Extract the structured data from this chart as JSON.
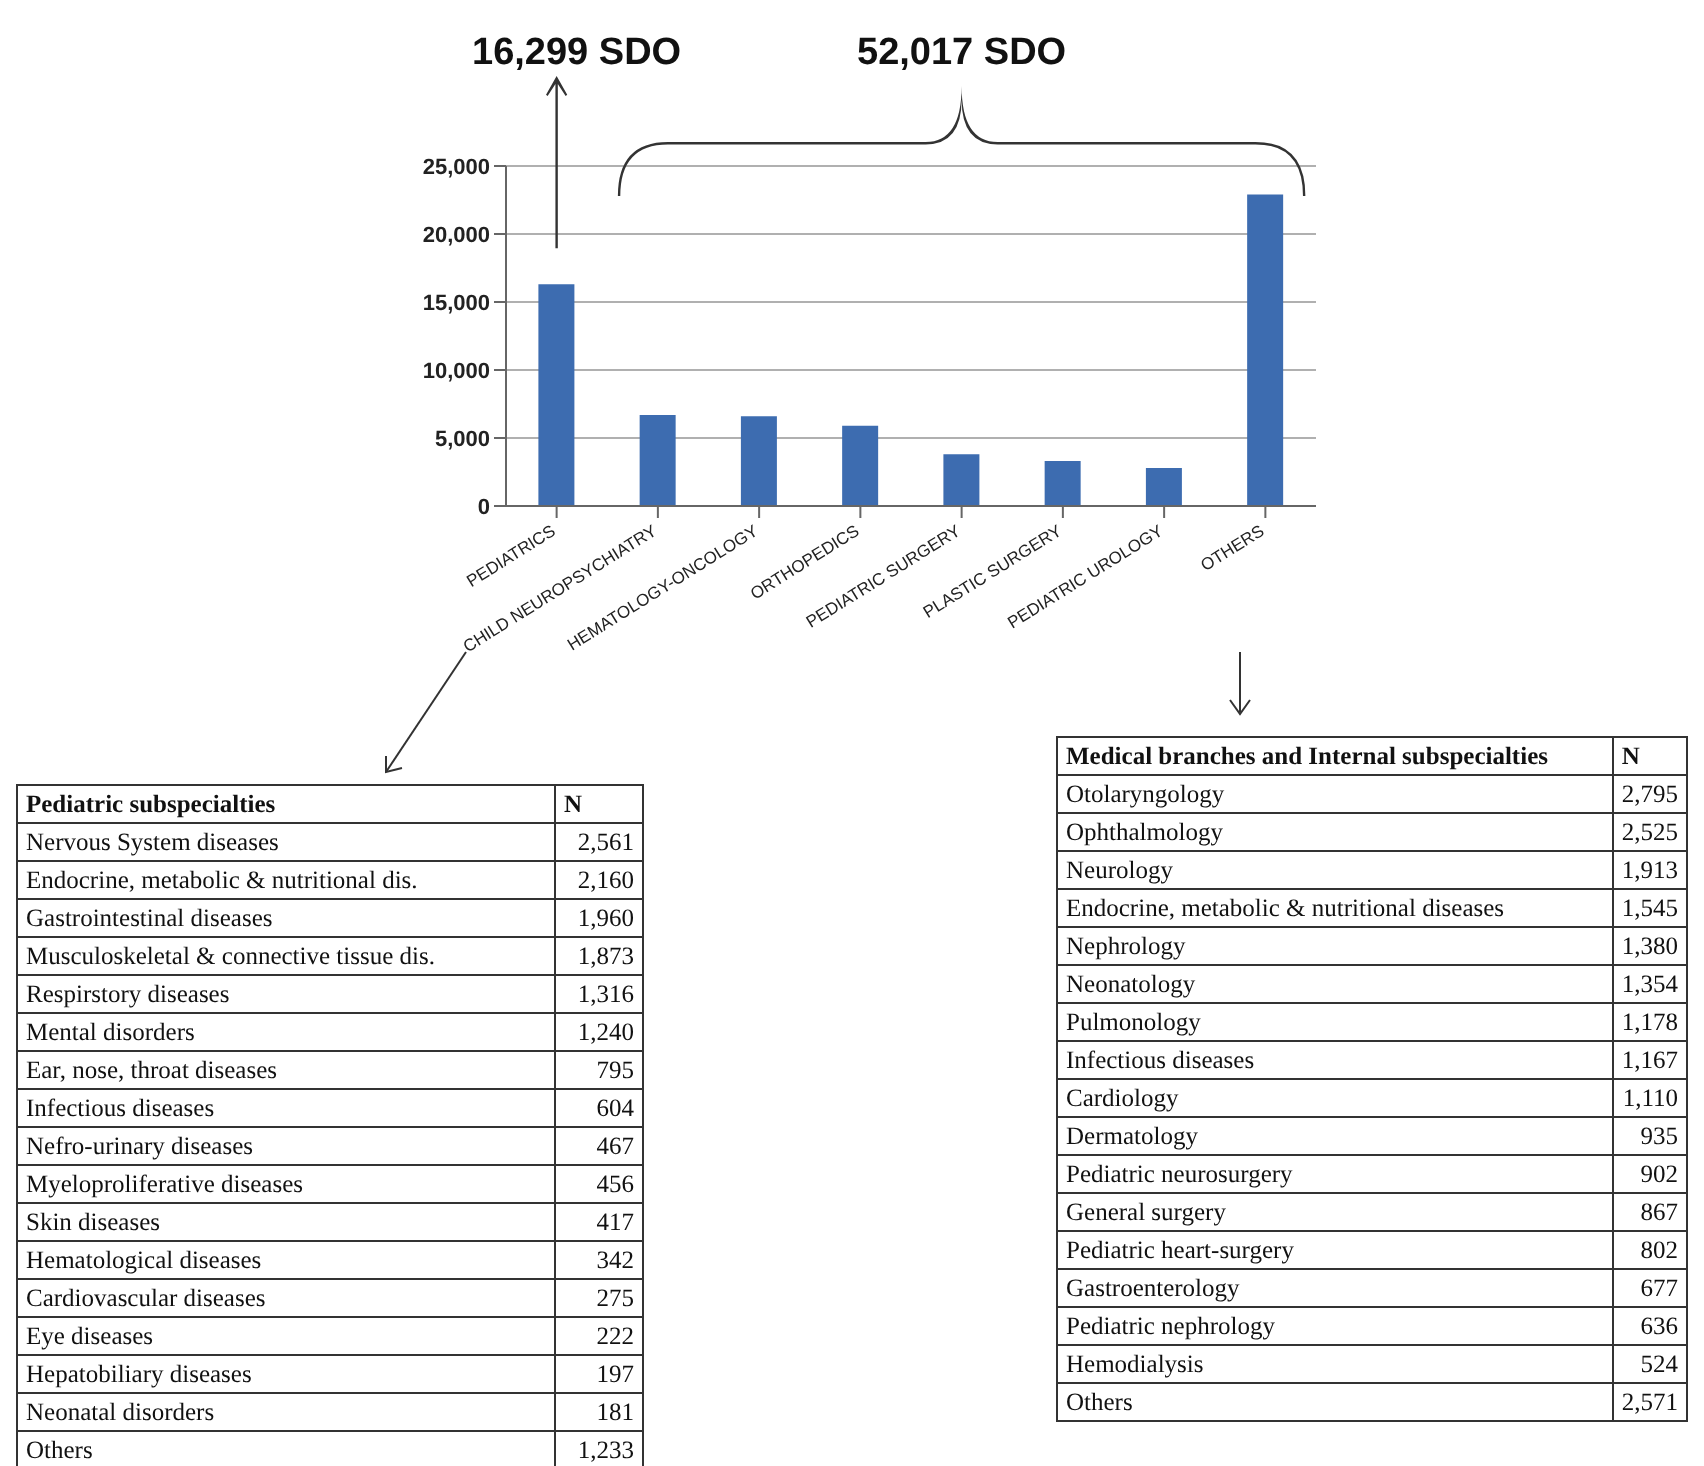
{
  "chart_data": [
    {
      "type": "bar",
      "categories": [
        "PEDIATRICS",
        "CHILD NEUROPSYCHIATRY",
        "HEMATOLOGY-ONCOLOGY",
        "ORTHOPEDICS",
        "PEDIATRIC SURGERY",
        "PLASTIC SURGERY",
        "PEDIATRIC UROLOGY",
        "OTHERS"
      ],
      "values": [
        16299,
        6700,
        6600,
        5900,
        3800,
        3300,
        2800,
        22900
      ],
      "color": "#3d6cb0",
      "ylim": [
        0,
        25000
      ],
      "yticks": [
        {
          "value": 0,
          "label": "0"
        },
        {
          "value": 5000,
          "label": "5,000"
        },
        {
          "value": 10000,
          "label": "10,000"
        },
        {
          "value": 15000,
          "label": "15,000"
        },
        {
          "value": 20000,
          "label": "20,000"
        },
        {
          "value": 25000,
          "label": "25,000"
        }
      ],
      "grid": "y",
      "annotations": [
        "16,299 SDO",
        "52,017 SDO"
      ]
    },
    {
      "type": "other",
      "title": "Pediatric subspecialties",
      "ylabel": "N",
      "value_labels": [
        "2,561",
        "2,160",
        "1,960",
        "1,873",
        "1,316",
        "1,240",
        "795",
        "604",
        "467",
        "456",
        "417",
        "342",
        "275",
        "222",
        "197",
        "181",
        "1,233"
      ],
      "categories": [
        "Nervous System diseases",
        "Endocrine, metabolic & nutritional dis.",
        "Gastrointestinal diseases",
        "Musculoskeletal & connective tissue dis.",
        "Respirstory diseases",
        "Mental disorders",
        "Ear, nose, throat diseases",
        "Infectious diseases",
        "Nefro-urinary diseases",
        "Myeloproliferative diseases",
        "Skin diseases",
        "Hematological diseases",
        "Cardiovascular diseases",
        "Eye diseases",
        "Hepatobiliary diseases",
        "Neonatal disorders",
        "Others"
      ],
      "values": [
        2561,
        2160,
        1960,
        1873,
        1316,
        1240,
        795,
        604,
        467,
        456,
        417,
        342,
        275,
        222,
        197,
        181,
        1233
      ]
    },
    {
      "type": "other",
      "title": "Medical branches and Internal subspecialties",
      "ylabel": "N",
      "value_labels": [
        "2,795",
        "2,525",
        "1,913",
        "1,545",
        "1,380",
        "1,354",
        "1,178",
        "1,167",
        "1,110",
        "935",
        "902",
        "867",
        "802",
        "677",
        "636",
        "524",
        "2,571"
      ],
      "categories": [
        "Otolaryngology",
        "Ophthalmology",
        "Neurology",
        "Endocrine, metabolic & nutritional diseases",
        "Nephrology",
        "Neonatology",
        "Pulmonology",
        "Infectious diseases",
        "Cardiology",
        "Dermatology",
        "Pediatric neurosurgery",
        "General surgery",
        "Pediatric heart-surgery",
        "Gastroenterology",
        "Pediatric nephrology",
        "Hemodialysis",
        "Others"
      ],
      "values": [
        2795,
        2525,
        1913,
        1545,
        1380,
        1354,
        1178,
        1167,
        1110,
        935,
        902,
        867,
        802,
        677,
        636,
        524,
        2571
      ]
    }
  ]
}
